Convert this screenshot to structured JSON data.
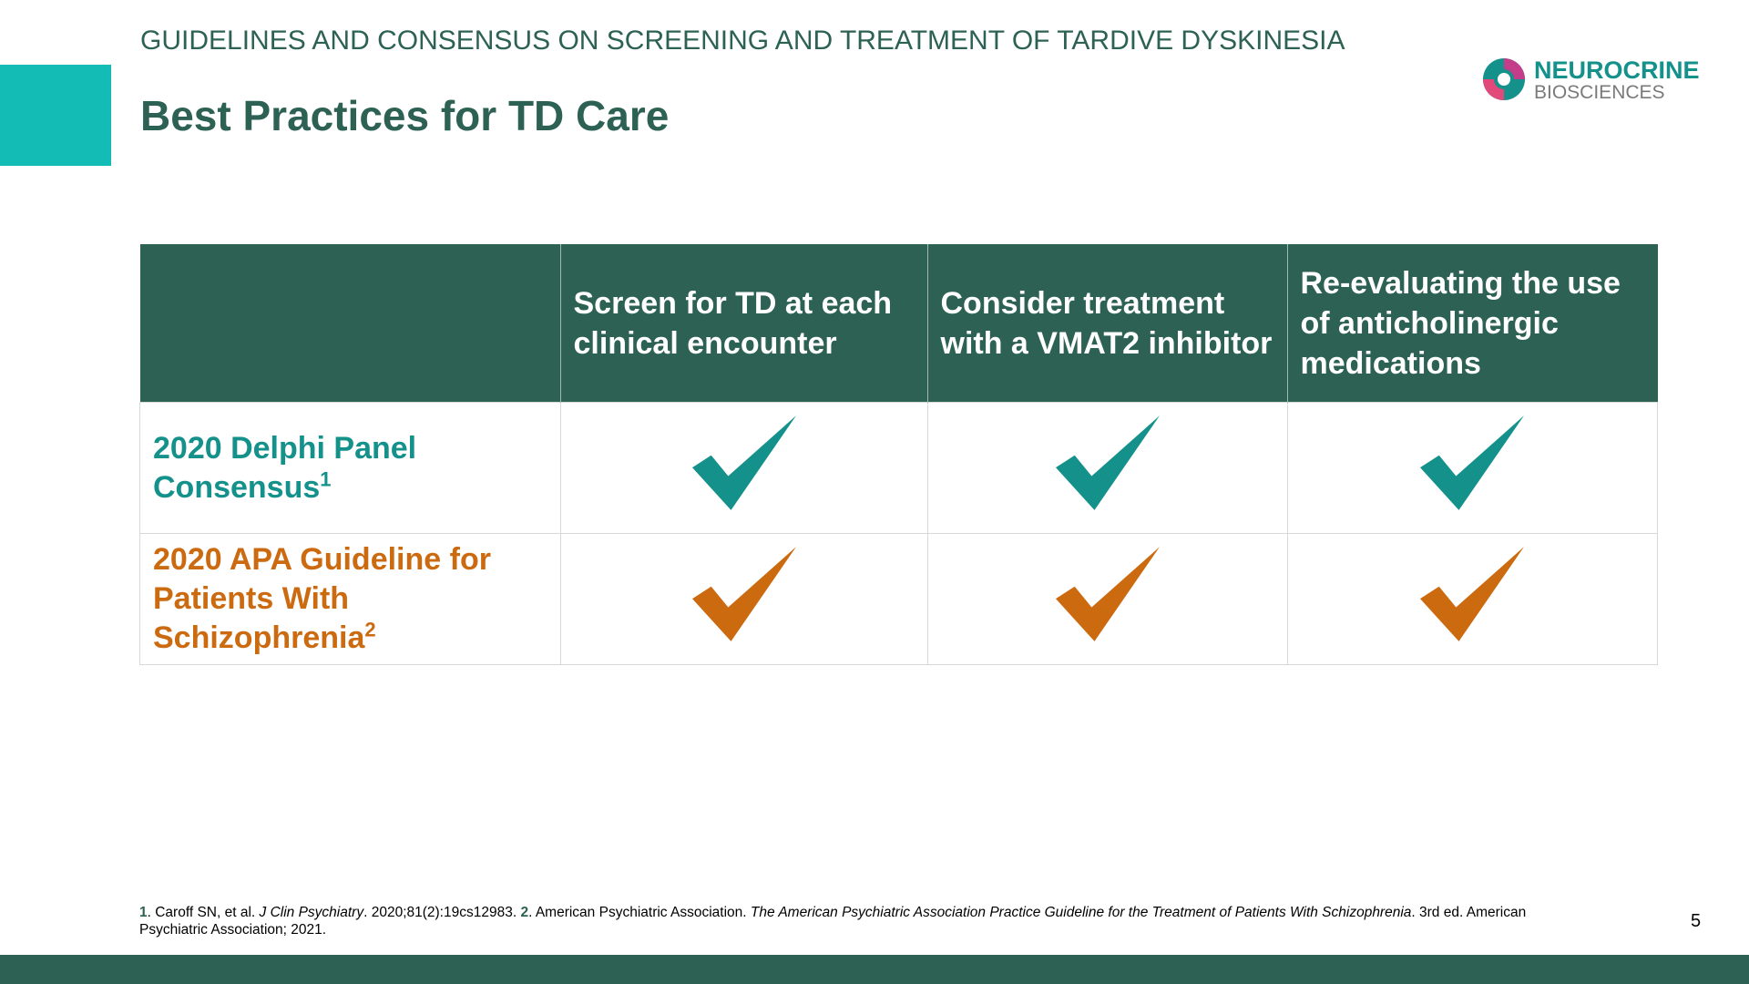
{
  "header": {
    "subtitle": "GUIDELINES AND CONSENSUS ON SCREENING AND TREATMENT OF TARDIVE DYSKINESIA",
    "title": "Best Practices for TD Care"
  },
  "logo": {
    "name": "NEUROCRINE",
    "sub": "BIOSCIENCES"
  },
  "table": {
    "columns": [
      "Screen for TD at each clinical encounter",
      "Consider treatment with a VMAT2 inhibitor",
      "Re-evaluating the use of anticholinergic medications"
    ],
    "rows": [
      {
        "label": "2020 Delphi Panel Consensus",
        "ref": "1"
      },
      {
        "label": "2020 APA Guideline for Patients With Schizophrenia",
        "ref": "2"
      }
    ]
  },
  "footnote": {
    "n1": "1",
    "t1": ". Caroff SN, et al. ",
    "i1": "J Clin Psychiatry",
    "t2": ". 2020;81(2):19cs12983. ",
    "n2": "2",
    "t3": ". American Psychiatric Association. ",
    "i2": "The American Psychiatric Association Practice Guideline for the Treatment of Patients With Schizophrenia",
    "t4": ". 3rd ed. American Psychiatric Association; 2021."
  },
  "page_number": "5"
}
